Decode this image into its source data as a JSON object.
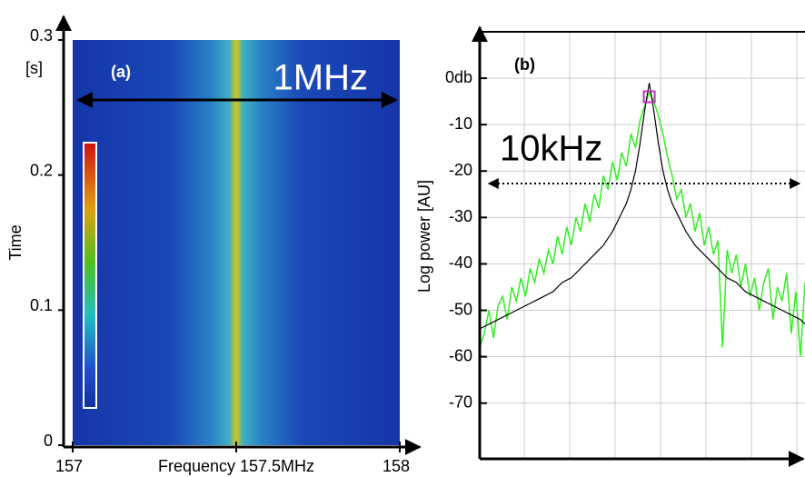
{
  "chart_data": [
    {
      "type": "heatmap",
      "annotations": [
        "(a)",
        "1MHz"
      ],
      "y_unit": "[s]",
      "ylabel": "Time",
      "xlabel": "Frequency 157.5MHz",
      "xlim": [
        157,
        158
      ],
      "xticks": [
        157,
        158
      ],
      "ylim": [
        0,
        0.3
      ],
      "yticks": [
        0,
        0.1,
        0.2,
        0.3
      ]
    },
    {
      "type": "line",
      "annotations": [
        "(b)",
        "10kHz"
      ],
      "ylabel": "Log power [AU]",
      "ylim": [
        -82,
        10
      ],
      "yticks": [
        {
          "value": 0,
          "label": "0db"
        },
        -10,
        -20,
        -30,
        -40,
        -50,
        -60,
        -70
      ],
      "grid": true,
      "xlim": [
        0,
        71
      ],
      "x": [
        0,
        1,
        2,
        3,
        4,
        5,
        6,
        7,
        8,
        9,
        10,
        11,
        12,
        13,
        14,
        15,
        16,
        17,
        18,
        19,
        20,
        21,
        22,
        23,
        24,
        25,
        26,
        27,
        28,
        29,
        30,
        31,
        32,
        33,
        34,
        35,
        36,
        37,
        38,
        39,
        40,
        41,
        42,
        43,
        44,
        45,
        46,
        47,
        48,
        49,
        50,
        51,
        52,
        53,
        54,
        55,
        56,
        57,
        58,
        59,
        60,
        61,
        62,
        63,
        64,
        65,
        66,
        67,
        68,
        69,
        70,
        71
      ],
      "series": [
        {
          "color": "#33ee22",
          "values": [
            -58,
            -55,
            -50,
            -56,
            -49,
            -47,
            -52,
            -45,
            -48,
            -43,
            -47,
            -41,
            -44,
            -39,
            -42,
            -37,
            -40,
            -34,
            -38,
            -32,
            -36,
            -30,
            -33,
            -27,
            -31,
            -25,
            -28,
            -21,
            -24,
            -18,
            -22,
            -16,
            -19,
            -12,
            -15,
            -9,
            -6,
            -3,
            -5,
            -8,
            -12,
            -17,
            -21,
            -26,
            -24,
            -30,
            -27,
            -33,
            -29,
            -36,
            -32,
            -38,
            -35,
            -58,
            -37,
            -42,
            -38,
            -45,
            -40,
            -47,
            -43,
            -50,
            -44,
            -41,
            -52,
            -45,
            -48,
            -42,
            -55,
            -46,
            -60,
            -44
          ]
        },
        {
          "color": "#000000",
          "values": [
            -54,
            -53.5,
            -53,
            -52.5,
            -52,
            -51.5,
            -51,
            -50.5,
            -50,
            -49.5,
            -49,
            -48.5,
            -48,
            -47.5,
            -47,
            -46.5,
            -46,
            -45,
            -44,
            -43.5,
            -43,
            -42,
            -41,
            -40,
            -39,
            -38,
            -37,
            -36,
            -34.5,
            -33,
            -31,
            -29,
            -27,
            -24,
            -20,
            -14,
            -7,
            -1,
            -7,
            -14,
            -20,
            -24,
            -27,
            -29,
            -31,
            -33,
            -34.5,
            -36,
            -37,
            -38,
            -39,
            -40,
            -41,
            -42,
            -43,
            -43.5,
            -44,
            -45,
            -46,
            -46.5,
            -47,
            -47.5,
            -48,
            -48.5,
            -49,
            -49.5,
            -50,
            -50.5,
            -51,
            -51.5,
            -52,
            -53
          ]
        }
      ]
    }
  ]
}
